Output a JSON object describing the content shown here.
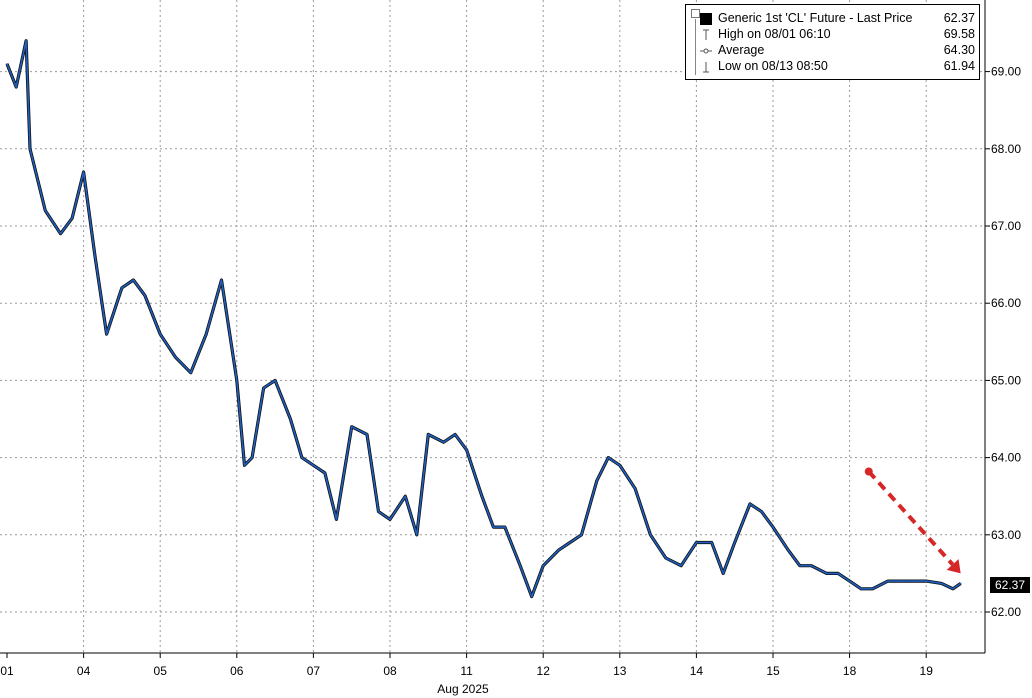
{
  "chart_data": {
    "type": "line",
    "title": "",
    "xlabel": "Aug 2025",
    "ylabel": "",
    "ylim": [
      61.4,
      69.7
    ],
    "y_ticks": [
      "62.00",
      "63.00",
      "64.00",
      "65.00",
      "66.00",
      "67.00",
      "68.00",
      "69.00"
    ],
    "x_tick_labels": [
      "01",
      "04",
      "05",
      "06",
      "07",
      "08",
      "11",
      "12",
      "13",
      "14",
      "15",
      "18",
      "19"
    ],
    "grid": true,
    "legend_position": "top-right",
    "series": [
      {
        "name": "Generic 1st 'CL' Future - Last Price",
        "color": "#1f5fbf",
        "x_session": [
          0.0,
          0.12,
          0.25,
          0.3,
          0.5,
          0.7,
          0.85,
          1.0,
          1.15,
          1.3,
          1.5,
          1.65,
          1.8,
          2.0,
          2.2,
          2.4,
          2.6,
          2.8,
          3.0,
          3.1,
          3.2,
          3.35,
          3.5,
          3.7,
          3.85,
          4.0,
          4.15,
          4.3,
          4.5,
          4.7,
          4.85,
          5.0,
          5.2,
          5.35,
          5.5,
          5.7,
          5.85,
          6.0,
          6.2,
          6.35,
          6.5,
          6.7,
          6.85,
          7.0,
          7.2,
          7.35,
          7.5,
          7.7,
          7.85,
          8.0,
          8.2,
          8.4,
          8.6,
          8.8,
          9.0,
          9.2,
          9.35,
          9.5,
          9.7,
          9.85,
          10.0,
          10.2,
          10.35,
          10.5,
          10.7,
          10.85,
          11.0,
          11.15,
          11.3,
          11.5,
          11.7,
          11.85,
          12.0,
          12.2,
          12.35,
          12.45
        ],
        "values": [
          69.1,
          68.8,
          69.4,
          68.0,
          67.2,
          66.9,
          67.1,
          67.7,
          66.6,
          65.6,
          66.2,
          66.3,
          66.1,
          65.6,
          65.3,
          65.1,
          65.6,
          66.3,
          65.0,
          63.9,
          64.0,
          64.9,
          65.0,
          64.5,
          64.0,
          63.9,
          63.8,
          63.2,
          64.4,
          64.3,
          63.3,
          63.2,
          63.5,
          63.0,
          64.3,
          64.2,
          64.3,
          64.1,
          63.5,
          63.1,
          63.1,
          62.6,
          62.2,
          62.6,
          62.8,
          62.9,
          63.0,
          63.7,
          64.0,
          63.9,
          63.6,
          63.0,
          62.7,
          62.6,
          62.9,
          62.9,
          62.5,
          62.9,
          63.4,
          63.3,
          63.1,
          62.8,
          62.6,
          62.6,
          62.5,
          62.5,
          62.4,
          62.3,
          62.3,
          62.4,
          62.4,
          62.4,
          62.4,
          62.37,
          62.3,
          62.37
        ]
      }
    ],
    "legend": {
      "series_label": "Generic 1st 'CL' Future - Last Price",
      "last_price": "62.37",
      "high_label": "High on 08/01 06:10",
      "high_value": "69.58",
      "average_label": "Average",
      "average_value": "64.30",
      "low_label": "Low on 08/13 08:50",
      "low_value": "61.94"
    },
    "last_price_tag": "62.37",
    "annotation": {
      "type": "dashed-arrow",
      "color": "#d62728",
      "from": {
        "x_session": 11.25,
        "y": 63.82
      },
      "to": {
        "x_session": 12.45,
        "y": 62.5
      }
    }
  }
}
